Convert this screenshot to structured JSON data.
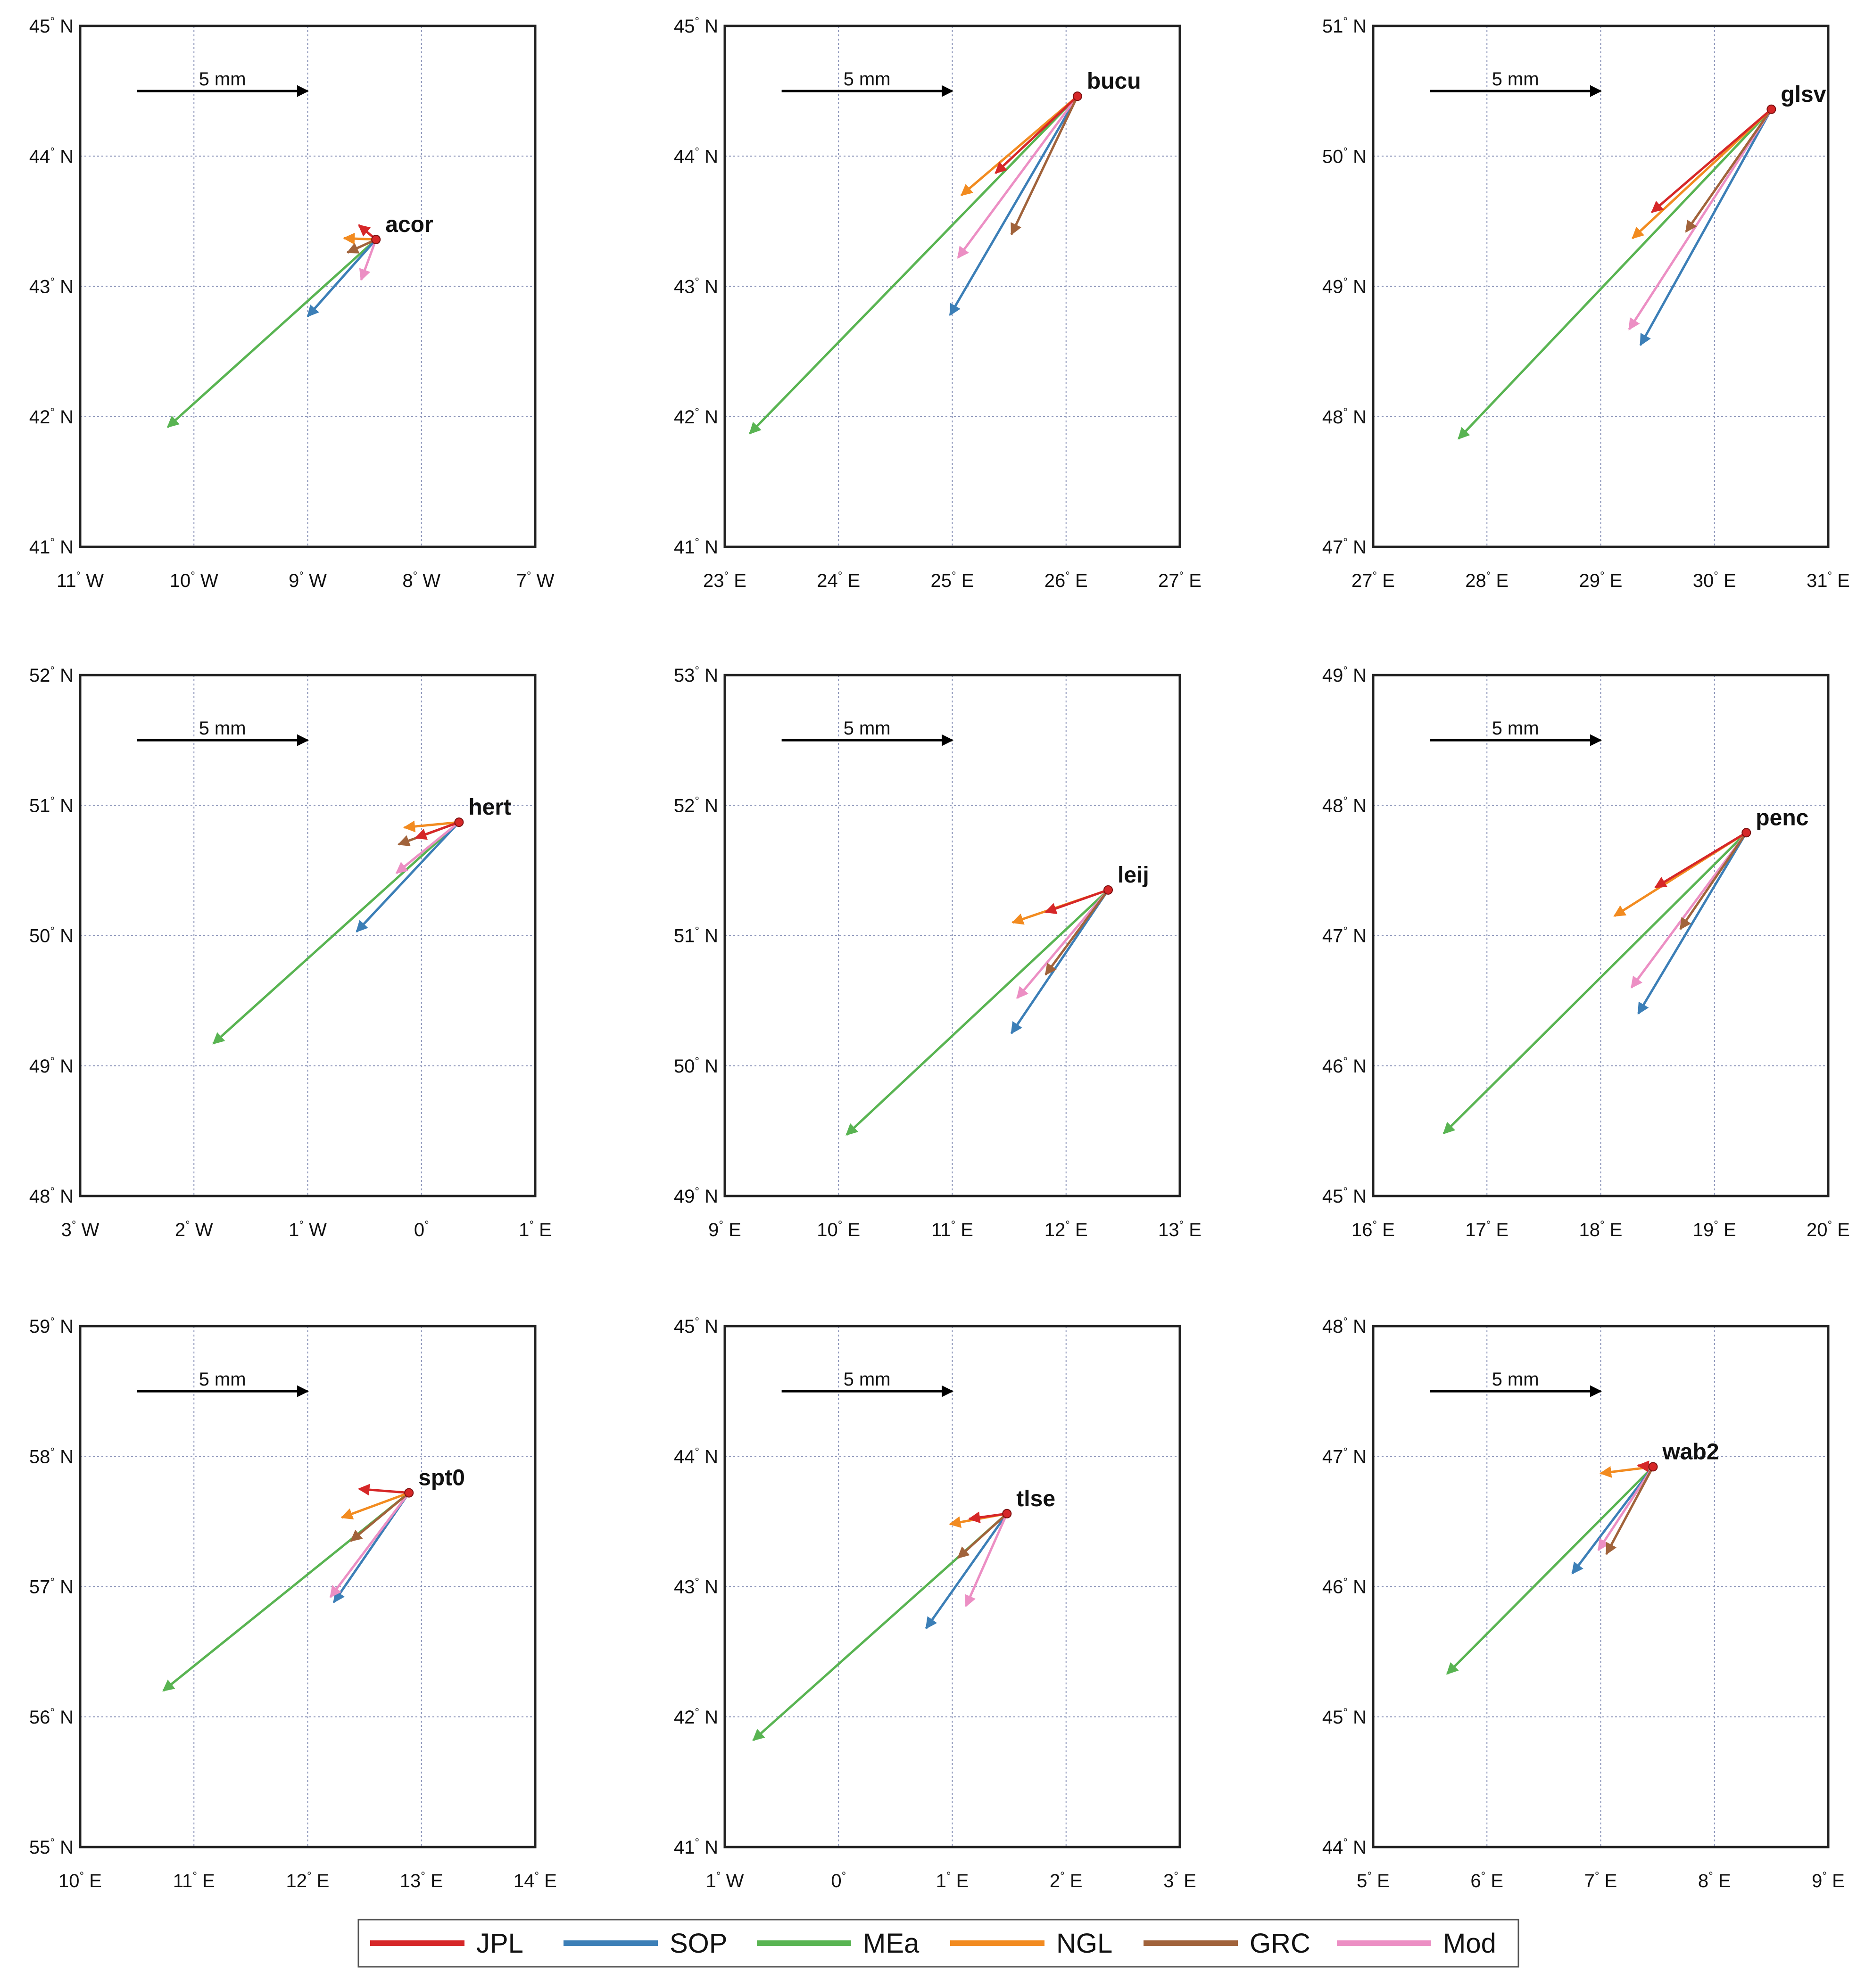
{
  "figure": {
    "colors": {
      "JPL": "#d62728",
      "SOP": "#3c7fb7",
      "MEa": "#59b452",
      "NGL": "#f28b20",
      "GRC": "#a1633b",
      "Mod": "#ec8fc4",
      "station_dot": "#d62728"
    }
  },
  "chart_data": [
    {
      "type": "vector",
      "station": "acor",
      "station_lon": -8.4,
      "station_lat": 43.36,
      "xlim": [
        -11,
        -7
      ],
      "ylim": [
        41,
        45
      ],
      "xticks": [
        {
          "v": -11,
          "n": "11",
          "h": "W"
        },
        {
          "v": -10,
          "n": "10",
          "h": "W"
        },
        {
          "v": -9,
          "n": "9",
          "h": "W"
        },
        {
          "v": -8,
          "n": "8",
          "h": "W"
        },
        {
          "v": -7,
          "n": "7",
          "h": "W"
        }
      ],
      "yticks": [
        {
          "v": 41,
          "n": "41",
          "h": "N"
        },
        {
          "v": 42,
          "n": "42",
          "h": "N"
        },
        {
          "v": 43,
          "n": "43",
          "h": "N"
        },
        {
          "v": 44,
          "n": "44",
          "h": "N"
        },
        {
          "v": 45,
          "n": "45",
          "h": "N"
        }
      ],
      "scale_label": "5 mm",
      "scale_from": [
        -10.5,
        44.5
      ],
      "scale_to": [
        -9.0,
        44.5
      ],
      "vectors": [
        {
          "series": "MEa",
          "end": [
            -10.23,
            41.92
          ]
        },
        {
          "series": "SOP",
          "end": [
            -9.0,
            42.77
          ]
        },
        {
          "series": "GRC",
          "end": [
            -8.65,
            43.26
          ]
        },
        {
          "series": "NGL",
          "end": [
            -8.68,
            43.37
          ]
        },
        {
          "series": "JPL",
          "end": [
            -8.55,
            43.47
          ]
        },
        {
          "series": "Mod",
          "end": [
            -8.53,
            43.05
          ]
        }
      ]
    },
    {
      "type": "vector",
      "station": "bucu",
      "station_lon": 26.1,
      "station_lat": 44.46,
      "xlim": [
        23,
        27
      ],
      "ylim": [
        41,
        45
      ],
      "xticks": [
        {
          "v": 23,
          "n": "23",
          "h": "E"
        },
        {
          "v": 24,
          "n": "24",
          "h": "E"
        },
        {
          "v": 25,
          "n": "25",
          "h": "E"
        },
        {
          "v": 26,
          "n": "26",
          "h": "E"
        },
        {
          "v": 27,
          "n": "27",
          "h": "E"
        }
      ],
      "yticks": [
        {
          "v": 41,
          "n": "41",
          "h": "N"
        },
        {
          "v": 42,
          "n": "42",
          "h": "N"
        },
        {
          "v": 43,
          "n": "43",
          "h": "N"
        },
        {
          "v": 44,
          "n": "44",
          "h": "N"
        },
        {
          "v": 45,
          "n": "45",
          "h": "N"
        }
      ],
      "scale_label": "5 mm",
      "scale_from": [
        23.5,
        44.5
      ],
      "scale_to": [
        25.0,
        44.5
      ],
      "vectors": [
        {
          "series": "MEa",
          "end": [
            23.22,
            41.87
          ]
        },
        {
          "series": "SOP",
          "end": [
            24.98,
            42.78
          ]
        },
        {
          "series": "Mod",
          "end": [
            25.05,
            43.22
          ]
        },
        {
          "series": "GRC",
          "end": [
            25.52,
            43.4
          ]
        },
        {
          "series": "NGL",
          "end": [
            25.08,
            43.7
          ]
        },
        {
          "series": "JPL",
          "end": [
            25.38,
            43.87
          ]
        }
      ]
    },
    {
      "type": "vector",
      "station": "glsv",
      "station_lon": 30.5,
      "station_lat": 50.36,
      "xlim": [
        27,
        31
      ],
      "ylim": [
        47,
        51
      ],
      "xticks": [
        {
          "v": 27,
          "n": "27",
          "h": "E"
        },
        {
          "v": 28,
          "n": "28",
          "h": "E"
        },
        {
          "v": 29,
          "n": "29",
          "h": "E"
        },
        {
          "v": 30,
          "n": "30",
          "h": "E"
        },
        {
          "v": 31,
          "n": "31",
          "h": "E"
        }
      ],
      "yticks": [
        {
          "v": 47,
          "n": "47",
          "h": "N"
        },
        {
          "v": 48,
          "n": "48",
          "h": "N"
        },
        {
          "v": 49,
          "n": "49",
          "h": "N"
        },
        {
          "v": 50,
          "n": "50",
          "h": "N"
        },
        {
          "v": 51,
          "n": "51",
          "h": "N"
        }
      ],
      "scale_label": "5 mm",
      "scale_from": [
        27.5,
        50.5
      ],
      "scale_to": [
        29.0,
        50.5
      ],
      "vectors": [
        {
          "series": "MEa",
          "end": [
            27.75,
            47.83
          ]
        },
        {
          "series": "SOP",
          "end": [
            29.35,
            48.55
          ]
        },
        {
          "series": "Mod",
          "end": [
            29.25,
            48.67
          ]
        },
        {
          "series": "GRC",
          "end": [
            29.75,
            49.42
          ]
        },
        {
          "series": "NGL",
          "end": [
            29.28,
            49.37
          ]
        },
        {
          "series": "JPL",
          "end": [
            29.45,
            49.57
          ]
        }
      ]
    },
    {
      "type": "vector",
      "station": "hert",
      "station_lon": 0.33,
      "station_lat": 50.87,
      "xlim": [
        -3,
        1
      ],
      "ylim": [
        48,
        52
      ],
      "xticks": [
        {
          "v": -3,
          "n": "3",
          "h": "W"
        },
        {
          "v": -2,
          "n": "2",
          "h": "W"
        },
        {
          "v": -1,
          "n": "1",
          "h": "W"
        },
        {
          "v": 0,
          "n": "0",
          "h": ""
        },
        {
          "v": 1,
          "n": "1",
          "h": "E"
        }
      ],
      "yticks": [
        {
          "v": 48,
          "n": "48",
          "h": "N"
        },
        {
          "v": 49,
          "n": "49",
          "h": "N"
        },
        {
          "v": 50,
          "n": "50",
          "h": "N"
        },
        {
          "v": 51,
          "n": "51",
          "h": "N"
        },
        {
          "v": 52,
          "n": "52",
          "h": "N"
        }
      ],
      "scale_label": "5 mm",
      "scale_from": [
        -2.5,
        51.5
      ],
      "scale_to": [
        -1.0,
        51.5
      ],
      "vectors": [
        {
          "series": "MEa",
          "end": [
            -1.83,
            49.17
          ]
        },
        {
          "series": "SOP",
          "end": [
            -0.57,
            50.03
          ]
        },
        {
          "series": "Mod",
          "end": [
            -0.22,
            50.48
          ]
        },
        {
          "series": "GRC",
          "end": [
            -0.2,
            50.7
          ]
        },
        {
          "series": "JPL",
          "end": [
            -0.05,
            50.75
          ]
        },
        {
          "series": "NGL",
          "end": [
            -0.15,
            50.83
          ]
        }
      ]
    },
    {
      "type": "vector",
      "station": "leij",
      "station_lon": 12.37,
      "station_lat": 51.35,
      "xlim": [
        9,
        13
      ],
      "ylim": [
        49,
        53
      ],
      "xticks": [
        {
          "v": 9,
          "n": "9",
          "h": "E"
        },
        {
          "v": 10,
          "n": "10",
          "h": "E"
        },
        {
          "v": 11,
          "n": "11",
          "h": "E"
        },
        {
          "v": 12,
          "n": "12",
          "h": "E"
        },
        {
          "v": 13,
          "n": "13",
          "h": "E"
        }
      ],
      "yticks": [
        {
          "v": 49,
          "n": "49",
          "h": "N"
        },
        {
          "v": 50,
          "n": "50",
          "h": "N"
        },
        {
          "v": 51,
          "n": "51",
          "h": "N"
        },
        {
          "v": 52,
          "n": "52",
          "h": "N"
        },
        {
          "v": 53,
          "n": "53",
          "h": "N"
        }
      ],
      "scale_label": "5 mm",
      "scale_from": [
        9.5,
        52.5
      ],
      "scale_to": [
        11.0,
        52.5
      ],
      "vectors": [
        {
          "series": "MEa",
          "end": [
            10.07,
            49.47
          ]
        },
        {
          "series": "SOP",
          "end": [
            11.52,
            50.25
          ]
        },
        {
          "series": "Mod",
          "end": [
            11.57,
            50.52
          ]
        },
        {
          "series": "GRC",
          "end": [
            11.82,
            50.7
          ]
        },
        {
          "series": "NGL",
          "end": [
            11.53,
            51.1
          ]
        },
        {
          "series": "JPL",
          "end": [
            11.82,
            51.18
          ]
        }
      ]
    },
    {
      "type": "vector",
      "station": "penc",
      "station_lon": 19.28,
      "station_lat": 47.79,
      "xlim": [
        16,
        20
      ],
      "ylim": [
        45,
        49
      ],
      "xticks": [
        {
          "v": 16,
          "n": "16",
          "h": "E"
        },
        {
          "v": 17,
          "n": "17",
          "h": "E"
        },
        {
          "v": 18,
          "n": "18",
          "h": "E"
        },
        {
          "v": 19,
          "n": "19",
          "h": "E"
        },
        {
          "v": 20,
          "n": "20",
          "h": "E"
        }
      ],
      "yticks": [
        {
          "v": 45,
          "n": "45",
          "h": "N"
        },
        {
          "v": 46,
          "n": "46",
          "h": "N"
        },
        {
          "v": 47,
          "n": "47",
          "h": "N"
        },
        {
          "v": 48,
          "n": "48",
          "h": "N"
        },
        {
          "v": 49,
          "n": "49",
          "h": "N"
        }
      ],
      "scale_label": "5 mm",
      "scale_from": [
        16.5,
        48.5
      ],
      "scale_to": [
        18.0,
        48.5
      ],
      "vectors": [
        {
          "series": "MEa",
          "end": [
            16.62,
            45.48
          ]
        },
        {
          "series": "SOP",
          "end": [
            18.33,
            46.4
          ]
        },
        {
          "series": "Mod",
          "end": [
            18.27,
            46.6
          ]
        },
        {
          "series": "GRC",
          "end": [
            18.7,
            47.05
          ]
        },
        {
          "series": "NGL",
          "end": [
            18.12,
            47.15
          ]
        },
        {
          "series": "JPL",
          "end": [
            18.48,
            47.37
          ]
        }
      ]
    },
    {
      "type": "vector",
      "station": "spt0",
      "station_lon": 12.89,
      "station_lat": 57.72,
      "xlim": [
        10,
        14
      ],
      "ylim": [
        55,
        59
      ],
      "xticks": [
        {
          "v": 10,
          "n": "10",
          "h": "E"
        },
        {
          "v": 11,
          "n": "11",
          "h": "E"
        },
        {
          "v": 12,
          "n": "12",
          "h": "E"
        },
        {
          "v": 13,
          "n": "13",
          "h": "E"
        },
        {
          "v": 14,
          "n": "14",
          "h": "E"
        }
      ],
      "yticks": [
        {
          "v": 55,
          "n": "55",
          "h": "N"
        },
        {
          "v": 56,
          "n": "56",
          "h": "N"
        },
        {
          "v": 57,
          "n": "57",
          "h": "N"
        },
        {
          "v": 58,
          "n": "58",
          "h": "N"
        },
        {
          "v": 59,
          "n": "59",
          "h": "N"
        }
      ],
      "scale_label": "5 mm",
      "scale_from": [
        10.5,
        58.5
      ],
      "scale_to": [
        12.0,
        58.5
      ],
      "vectors": [
        {
          "series": "MEa",
          "end": [
            10.73,
            56.2
          ]
        },
        {
          "series": "SOP",
          "end": [
            12.23,
            56.88
          ]
        },
        {
          "series": "Mod",
          "end": [
            12.2,
            56.92
          ]
        },
        {
          "series": "GRC",
          "end": [
            12.38,
            57.35
          ]
        },
        {
          "series": "NGL",
          "end": [
            12.3,
            57.53
          ]
        },
        {
          "series": "JPL",
          "end": [
            12.45,
            57.75
          ]
        }
      ]
    },
    {
      "type": "vector",
      "station": "tlse",
      "station_lon": 1.48,
      "station_lat": 43.56,
      "xlim": [
        -1,
        3
      ],
      "ylim": [
        41,
        45
      ],
      "xticks": [
        {
          "v": -1,
          "n": "1",
          "h": "W"
        },
        {
          "v": 0,
          "n": "0",
          "h": ""
        },
        {
          "v": 1,
          "n": "1",
          "h": "E"
        },
        {
          "v": 2,
          "n": "2",
          "h": "E"
        },
        {
          "v": 3,
          "n": "3",
          "h": "E"
        }
      ],
      "yticks": [
        {
          "v": 41,
          "n": "41",
          "h": "N"
        },
        {
          "v": 42,
          "n": "42",
          "h": "N"
        },
        {
          "v": 43,
          "n": "43",
          "h": "N"
        },
        {
          "v": 44,
          "n": "44",
          "h": "N"
        },
        {
          "v": 45,
          "n": "45",
          "h": "N"
        }
      ],
      "scale_label": "5 mm",
      "scale_from": [
        -0.5,
        44.5
      ],
      "scale_to": [
        1.0,
        44.5
      ],
      "vectors": [
        {
          "series": "MEa",
          "end": [
            -0.75,
            41.82
          ]
        },
        {
          "series": "SOP",
          "end": [
            0.77,
            42.68
          ]
        },
        {
          "series": "Mod",
          "end": [
            1.12,
            42.85
          ]
        },
        {
          "series": "GRC",
          "end": [
            1.05,
            43.22
          ]
        },
        {
          "series": "NGL",
          "end": [
            0.98,
            43.48
          ]
        },
        {
          "series": "JPL",
          "end": [
            1.15,
            43.52
          ]
        }
      ]
    },
    {
      "type": "vector",
      "station": "wab2",
      "station_lon": 7.46,
      "station_lat": 46.92,
      "xlim": [
        5,
        9
      ],
      "ylim": [
        44,
        48
      ],
      "xticks": [
        {
          "v": 5,
          "n": "5",
          "h": "E"
        },
        {
          "v": 6,
          "n": "6",
          "h": "E"
        },
        {
          "v": 7,
          "n": "7",
          "h": "E"
        },
        {
          "v": 8,
          "n": "8",
          "h": "E"
        },
        {
          "v": 9,
          "n": "9",
          "h": "E"
        }
      ],
      "yticks": [
        {
          "v": 44,
          "n": "44",
          "h": "N"
        },
        {
          "v": 45,
          "n": "45",
          "h": "N"
        },
        {
          "v": 46,
          "n": "46",
          "h": "N"
        },
        {
          "v": 47,
          "n": "47",
          "h": "N"
        },
        {
          "v": 48,
          "n": "48",
          "h": "N"
        }
      ],
      "scale_label": "5 mm",
      "scale_from": [
        5.5,
        47.5
      ],
      "scale_to": [
        7.0,
        47.5
      ],
      "vectors": [
        {
          "series": "MEa",
          "end": [
            5.65,
            45.33
          ]
        },
        {
          "series": "SOP",
          "end": [
            6.75,
            46.1
          ]
        },
        {
          "series": "Mod",
          "end": [
            6.98,
            46.28
          ]
        },
        {
          "series": "GRC",
          "end": [
            7.05,
            46.25
          ]
        },
        {
          "series": "NGL",
          "end": [
            7.0,
            46.87
          ]
        },
        {
          "series": "JPL",
          "end": [
            7.33,
            46.93
          ]
        }
      ]
    }
  ],
  "legend": {
    "items": [
      {
        "series": "JPL",
        "label": "JPL"
      },
      {
        "series": "SOP",
        "label": "SOP"
      },
      {
        "series": "MEa",
        "label": "MEa"
      },
      {
        "series": "NGL",
        "label": "NGL"
      },
      {
        "series": "GRC",
        "label": "GRC"
      },
      {
        "series": "Mod",
        "label": "Mod"
      }
    ]
  }
}
